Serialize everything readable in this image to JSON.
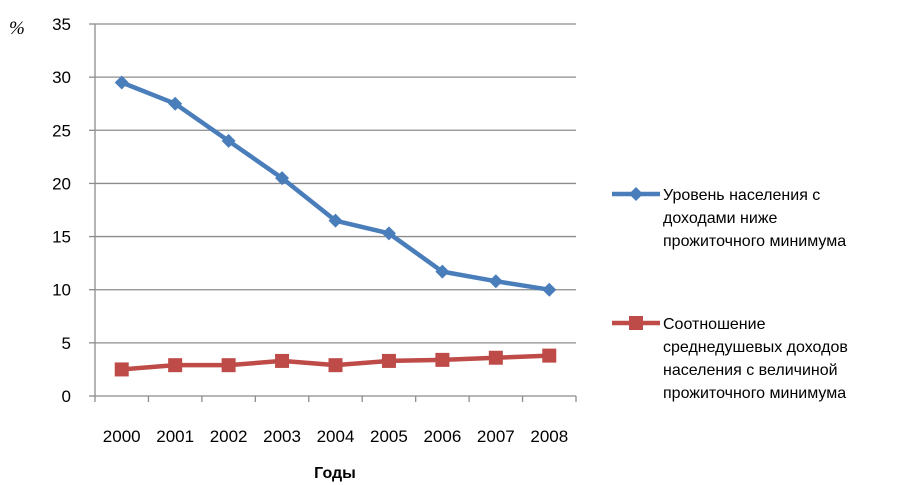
{
  "chart_data": {
    "type": "line",
    "categories": [
      "2000",
      "2001",
      "2002",
      "2003",
      "2004",
      "2005",
      "2006",
      "2007",
      "2008"
    ],
    "series": [
      {
        "name": "Уровень населения с доходами ниже прожиточного минимума",
        "legend_lines": [
          "Уровень населения с",
          "доходами ниже",
          "прожиточного минимума"
        ],
        "color": "#4a7ebb",
        "marker": "diamond",
        "values": [
          29.5,
          27.5,
          24.0,
          20.5,
          16.5,
          15.3,
          11.7,
          10.8,
          10.0
        ]
      },
      {
        "name": "Соотношение среднедушевых доходов населения с величиной прожиточного минимума",
        "legend_lines": [
          "Соотношение",
          "среднедушевых доходов",
          "населения с величиной",
          "прожиточного минимума"
        ],
        "color": "#be4b48",
        "marker": "square",
        "values": [
          2.5,
          2.9,
          2.9,
          3.3,
          2.9,
          3.3,
          3.4,
          3.6,
          3.8
        ]
      }
    ],
    "xlabel": "Годы",
    "ylabel": "%",
    "ylim": [
      0,
      35
    ],
    "yticks": [
      "0",
      "5",
      "10",
      "15",
      "20",
      "25",
      "30",
      "35"
    ],
    "grid": true,
    "legend_position": "right"
  }
}
